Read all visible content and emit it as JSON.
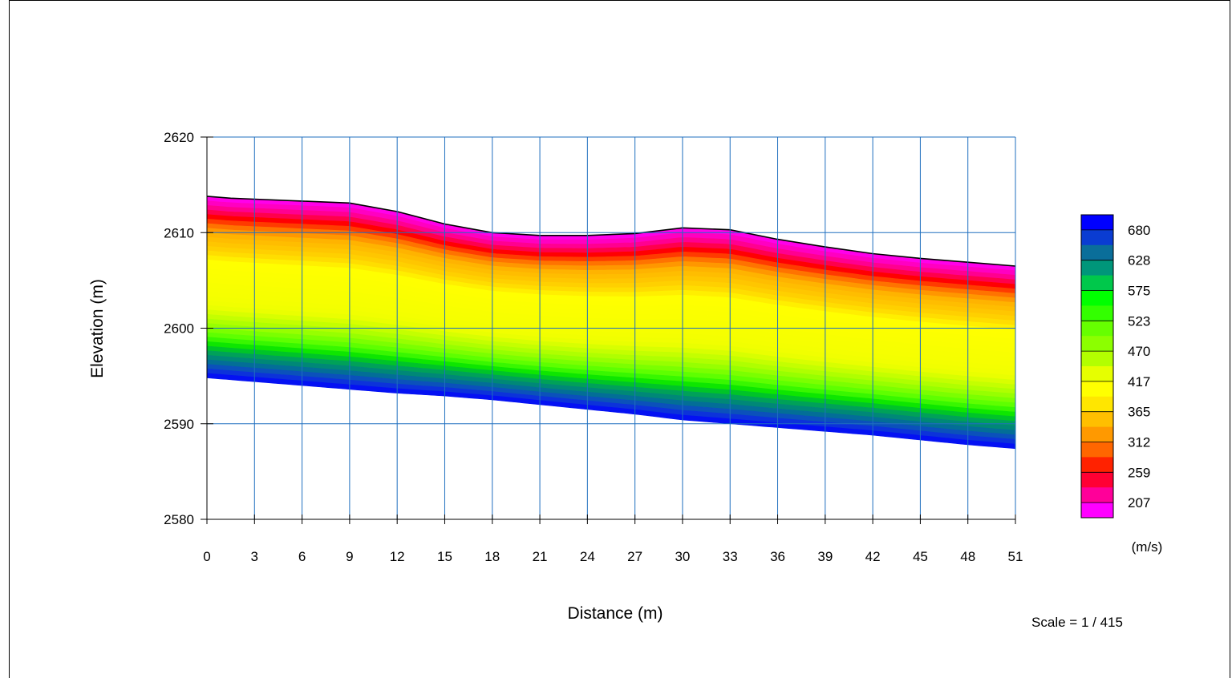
{
  "chart_data": {
    "type": "heatmap",
    "title": "",
    "xlabel": "Distance (m)",
    "ylabel": "Elevation (m)",
    "xlim": [
      0,
      51
    ],
    "ylim": [
      2580,
      2620
    ],
    "x_ticks": [
      0,
      3,
      6,
      9,
      12,
      15,
      18,
      21,
      24,
      27,
      30,
      33,
      36,
      39,
      42,
      45,
      48,
      51
    ],
    "y_ticks": [
      2580,
      2590,
      2600,
      2610,
      2620
    ],
    "grid": true,
    "surface": {
      "x": [
        0,
        1.5,
        3,
        6,
        9,
        12,
        15,
        18,
        21,
        24,
        27,
        30,
        33,
        36,
        39,
        42,
        45,
        48,
        51
      ],
      "y": [
        2613.8,
        2613.6,
        2613.5,
        2613.3,
        2613.1,
        2612.2,
        2610.9,
        2610.0,
        2609.7,
        2609.7,
        2609.9,
        2610.5,
        2610.3,
        2609.3,
        2608.5,
        2607.8,
        2607.3,
        2606.9,
        2606.5
      ]
    },
    "bottom": {
      "x": [
        0,
        3,
        6,
        9,
        12,
        15,
        18,
        21,
        24,
        27,
        30,
        33,
        36,
        39,
        42,
        45,
        48,
        51
      ],
      "y": [
        2594.8,
        2594.4,
        2594.0,
        2593.6,
        2593.2,
        2592.9,
        2592.5,
        2592.0,
        2591.5,
        2591.0,
        2590.4,
        2590.0,
        2589.6,
        2589.2,
        2588.8,
        2588.3,
        2587.8,
        2587.4
      ]
    },
    "layer_depths_below_surface": [
      0,
      0.8,
      1.4,
      2.0,
      2.6,
      3.4,
      6.0,
      9.6,
      10.6,
      11.6,
      12.6,
      13.4,
      14.2,
      15.0,
      15.8,
      16.6
    ],
    "layer_velocities": [
      200,
      225,
      250,
      275,
      300,
      330,
      380,
      400,
      430,
      460,
      490,
      520,
      560,
      600,
      640,
      680
    ],
    "legend": {
      "labels": [
        "680",
        "628",
        "575",
        "523",
        "470",
        "417",
        "365",
        "312",
        "259",
        "207"
      ],
      "colors": [
        "#0000ff",
        "#0a3cd2",
        "#0a6e9a",
        "#00967a",
        "#00c84b",
        "#00ff00",
        "#33ff00",
        "#66ff00",
        "#8cff00",
        "#b3ff00",
        "#e6ff00",
        "#ffff00",
        "#ffe600",
        "#ffbf00",
        "#ff9900",
        "#ff6600",
        "#ff2200",
        "#ff0033",
        "#ff0099",
        "#ff00ff"
      ],
      "unit": "(m/s)"
    },
    "scale_text": "Scale = 1 / 415"
  }
}
